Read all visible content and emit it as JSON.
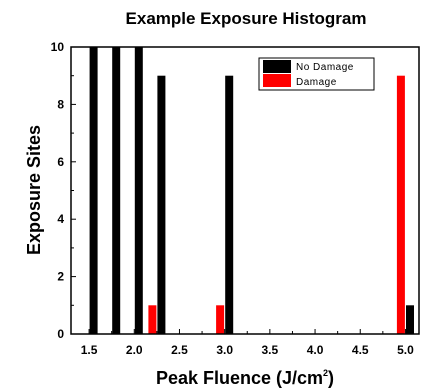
{
  "chart_data": {
    "type": "bar",
    "title": "Example Exposure Histogram",
    "xlabel": "Peak Fluence (J/cm",
    "xlabel_sup": "2",
    "xlabel_close": ")",
    "ylabel": "Exposure Sites",
    "xlim": [
      1.3,
      5.15
    ],
    "ylim": [
      0,
      10
    ],
    "xticks": [
      "1.5",
      "2.0",
      "2.5",
      "3.0",
      "3.5",
      "4.0",
      "4.5",
      "5.0"
    ],
    "yticks": [
      "0",
      "2",
      "4",
      "6",
      "8",
      "10"
    ],
    "legend_position": "top-right",
    "series": [
      {
        "name": "No Damage",
        "color": "#000000",
        "points": [
          {
            "x": 1.55,
            "y": 10
          },
          {
            "x": 1.8,
            "y": 10
          },
          {
            "x": 2.05,
            "y": 10
          },
          {
            "x": 2.3,
            "y": 9
          },
          {
            "x": 3.05,
            "y": 9
          },
          {
            "x": 5.05,
            "y": 1
          }
        ]
      },
      {
        "name": "Damage",
        "color": "#ff0000",
        "points": [
          {
            "x": 2.2,
            "y": 1
          },
          {
            "x": 2.95,
            "y": 1
          },
          {
            "x": 4.95,
            "y": 9
          }
        ]
      }
    ]
  }
}
